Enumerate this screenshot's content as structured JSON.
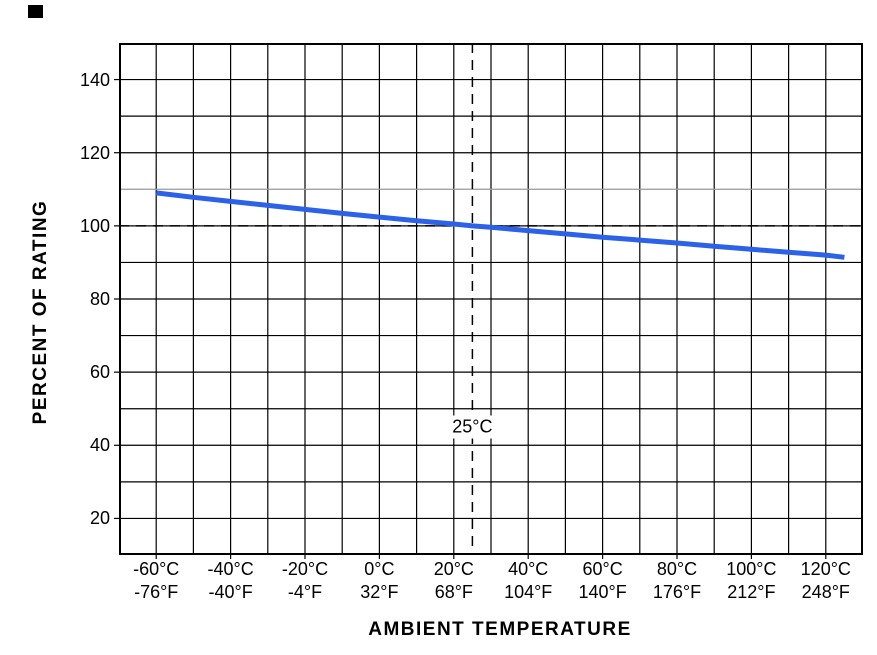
{
  "figure": {
    "background": "#ffffff"
  },
  "chart_data": {
    "type": "line",
    "title": "",
    "xlabel": "AMBIENT TEMPERATURE",
    "ylabel": "PERCENT OF RATING",
    "xlim": [
      -70,
      130
    ],
    "ylim": [
      10,
      150
    ],
    "x_grid_step": 10,
    "y_grid_step": 10,
    "grid": "on",
    "grid_color": "#000000",
    "legend": "none",
    "highlight_gridline": {
      "y": 110,
      "color": "#9a9a9a"
    },
    "y_ticks": [
      {
        "value": 140,
        "label": "140"
      },
      {
        "value": 120,
        "label": "120"
      },
      {
        "value": 100,
        "label": "100"
      },
      {
        "value": 80,
        "label": "80"
      },
      {
        "value": 60,
        "label": "60"
      },
      {
        "value": 40,
        "label": "40"
      },
      {
        "value": 20,
        "label": "20"
      }
    ],
    "x_ticks": [
      {
        "value": -60,
        "celsius": "-60°C",
        "fahrenheit": "-76°F"
      },
      {
        "value": -40,
        "celsius": "-40°C",
        "fahrenheit": "-40°F"
      },
      {
        "value": -20,
        "celsius": "-20°C",
        "fahrenheit": "-4°F"
      },
      {
        "value": 0,
        "celsius": "0°C",
        "fahrenheit": "32°F"
      },
      {
        "value": 20,
        "celsius": "20°C",
        "fahrenheit": "68°F"
      },
      {
        "value": 40,
        "celsius": "40°C",
        "fahrenheit": "104°F"
      },
      {
        "value": 60,
        "celsius": "60°C",
        "fahrenheit": "140°F"
      },
      {
        "value": 80,
        "celsius": "80°C",
        "fahrenheit": "176°F"
      },
      {
        "value": 100,
        "celsius": "100°C",
        "fahrenheit": "212°F"
      },
      {
        "value": 120,
        "celsius": "120°C",
        "fahrenheit": "248°F"
      }
    ],
    "reference_lines": [
      {
        "axis": "y",
        "value": 100,
        "style": "dashed",
        "color": "#000000"
      },
      {
        "axis": "x",
        "value": 25,
        "style": "dashed",
        "color": "#000000"
      }
    ],
    "annotation": {
      "text": "25°C",
      "x": 25,
      "y": 45
    },
    "series": [
      {
        "name": "derating-curve",
        "color": "#2b62e8",
        "width": 5,
        "points": [
          [
            -60,
            109.0
          ],
          [
            -50,
            107.8
          ],
          [
            -40,
            106.7
          ],
          [
            -30,
            105.6
          ],
          [
            -20,
            104.5
          ],
          [
            -10,
            103.4
          ],
          [
            0,
            102.4
          ],
          [
            10,
            101.4
          ],
          [
            20,
            100.5
          ],
          [
            25,
            100.0
          ],
          [
            30,
            99.6
          ],
          [
            40,
            98.7
          ],
          [
            50,
            97.8
          ],
          [
            60,
            96.9
          ],
          [
            70,
            96.1
          ],
          [
            80,
            95.3
          ],
          [
            90,
            94.4
          ],
          [
            100,
            93.6
          ],
          [
            110,
            92.8
          ],
          [
            120,
            92.0
          ],
          [
            125,
            91.4
          ]
        ]
      }
    ]
  }
}
